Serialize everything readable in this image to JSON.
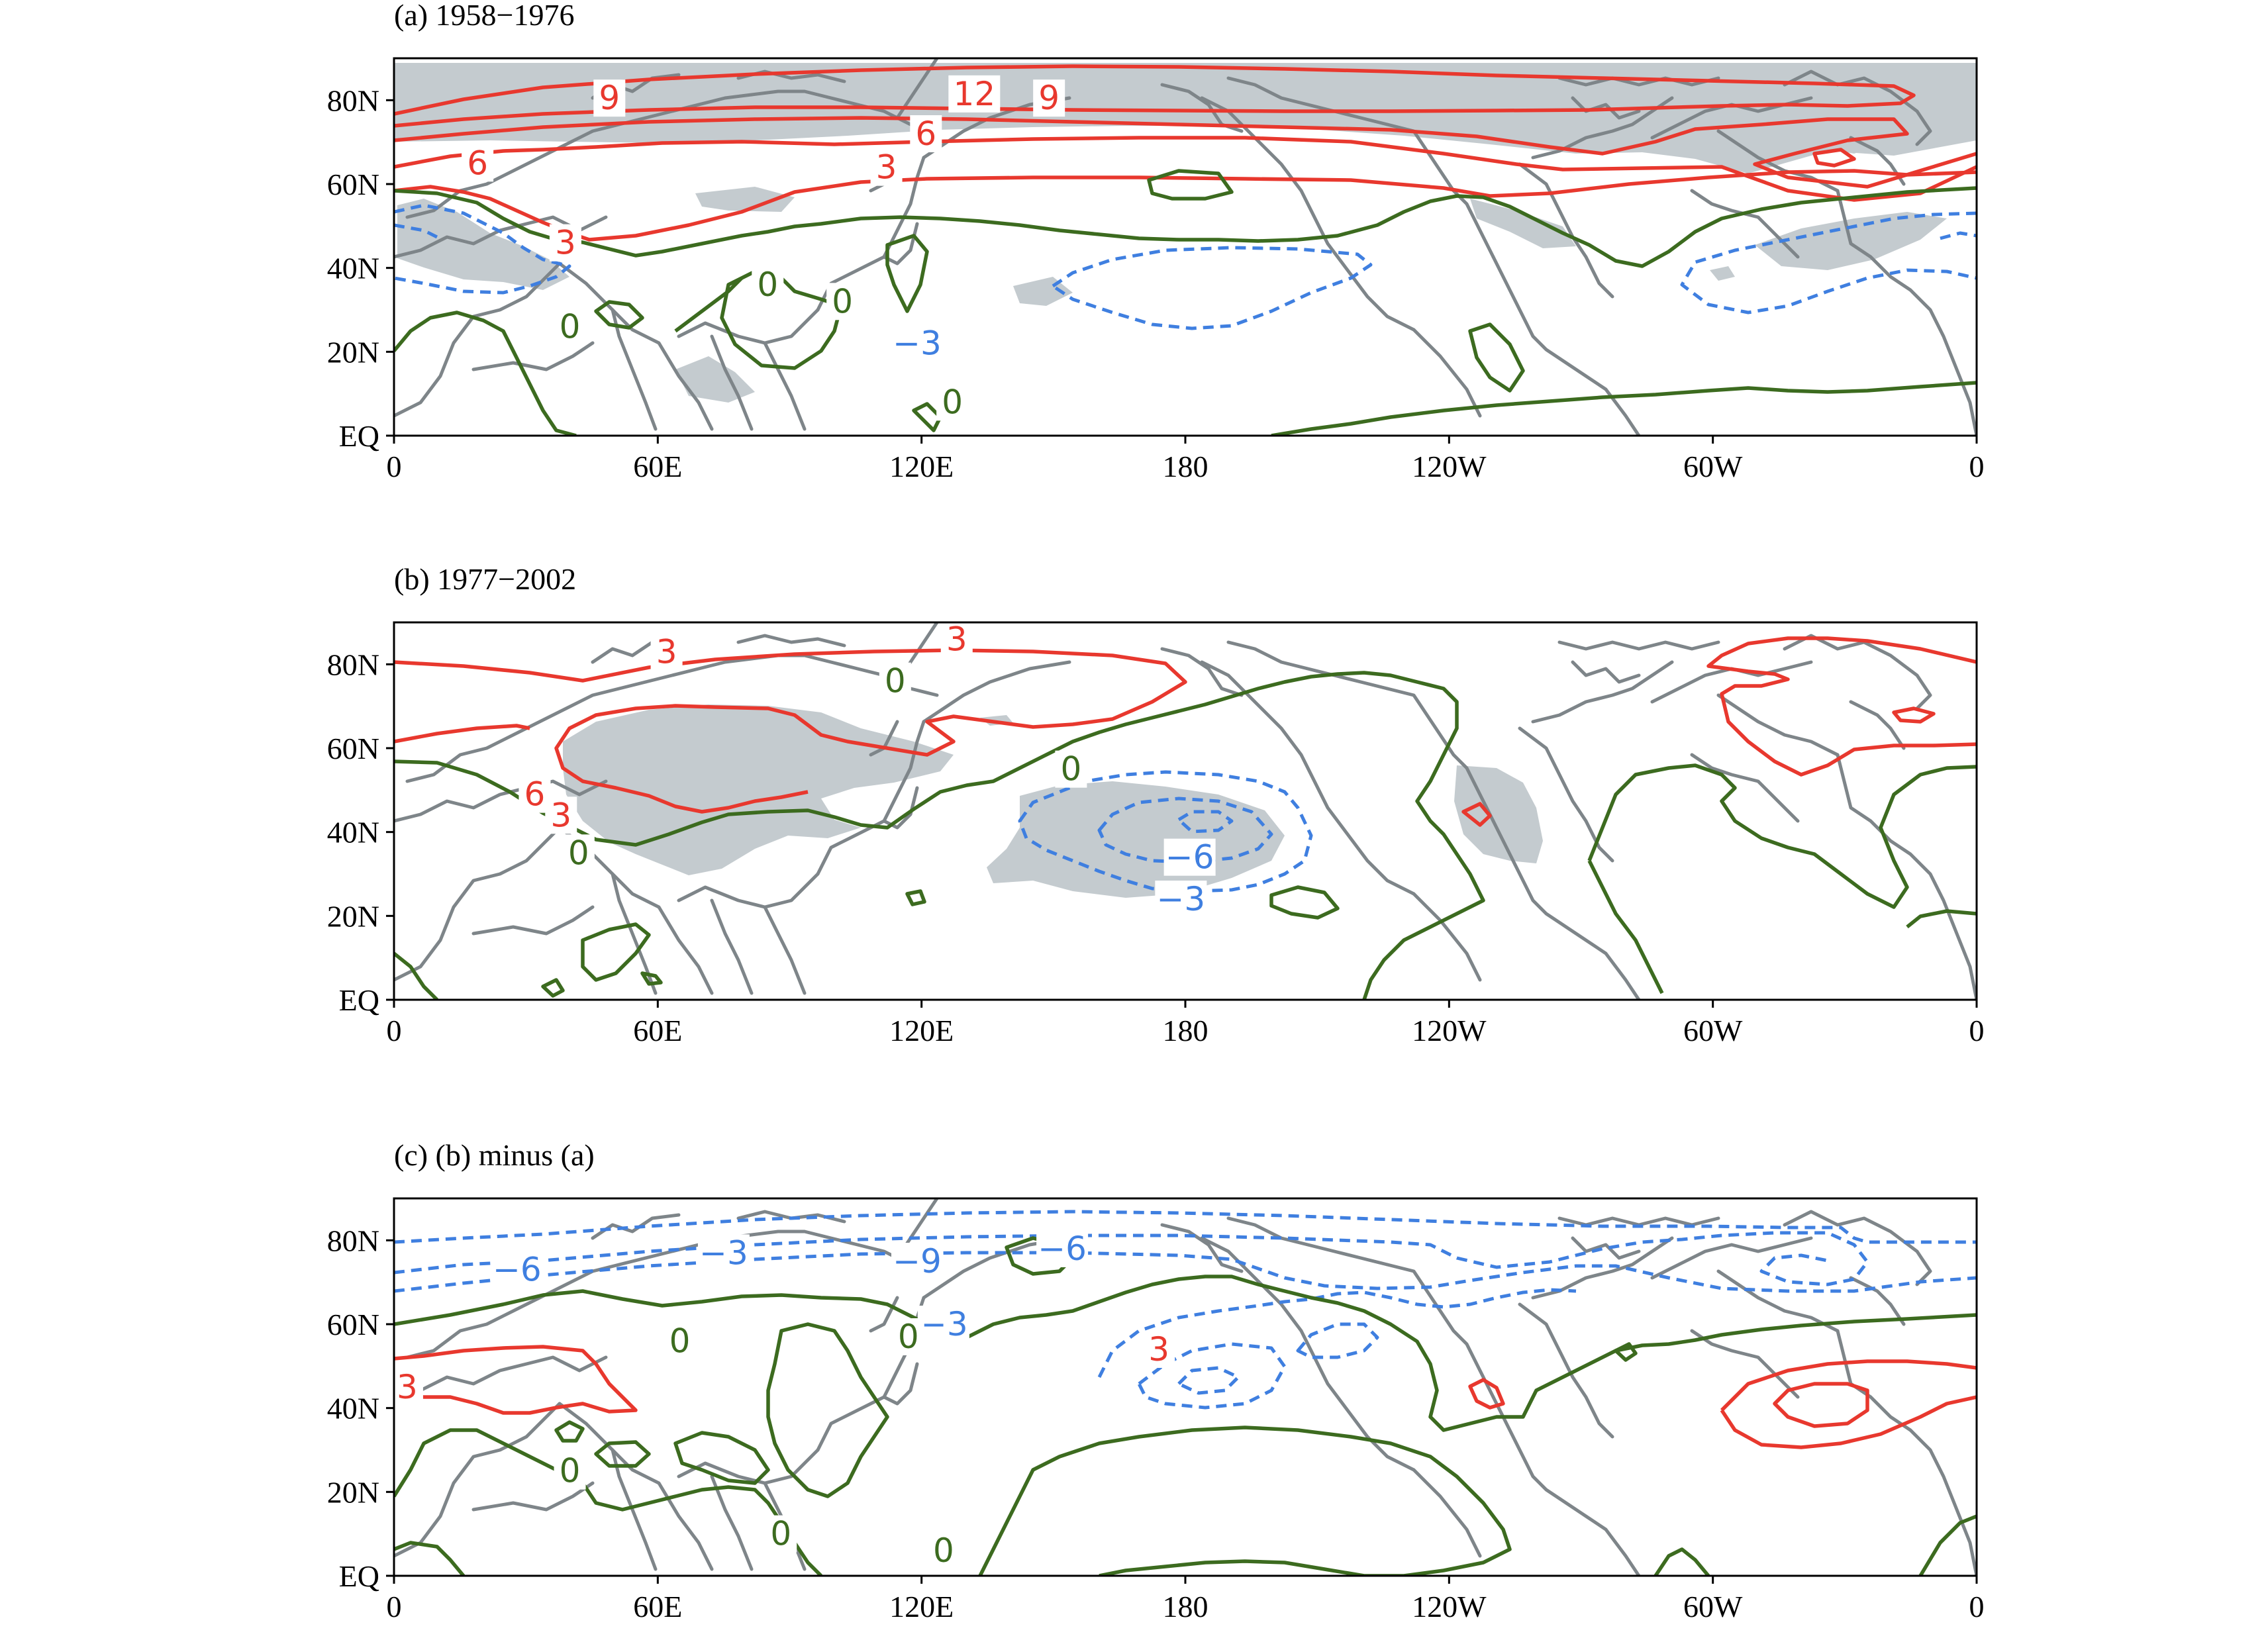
{
  "figure": {
    "panels": [
      {
        "id": "a",
        "title": "(a) 1958−1976",
        "labels": [
          {
            "text": "12",
            "lon": 132.0,
            "lat": 81.5,
            "sign": "pos"
          },
          {
            "text": "9",
            "lon": 149.0,
            "lat": 80.5,
            "sign": "pos"
          },
          {
            "text": "9",
            "lon": 49.0,
            "lat": 80.5,
            "sign": "pos"
          },
          {
            "text": "6",
            "lon": 121.0,
            "lat": 72.0,
            "sign": "pos"
          },
          {
            "text": "3",
            "lon": 112.0,
            "lat": 64.0,
            "sign": "pos"
          },
          {
            "text": "6",
            "lon": 19.0,
            "lat": 65.0,
            "sign": "pos"
          },
          {
            "text": "3",
            "lon": 39.0,
            "lat": 46.0,
            "sign": "pos"
          },
          {
            "text": "0",
            "lon": 85.0,
            "lat": 36.0,
            "sign": "zero"
          },
          {
            "text": "0",
            "lon": 40.0,
            "lat": 26.0,
            "sign": "zero"
          },
          {
            "text": "0",
            "lon": 102.0,
            "lat": 32.0,
            "sign": "zero"
          },
          {
            "text": "0",
            "lon": 127.0,
            "lat": 8.0,
            "sign": "zero"
          },
          {
            "text": "-3",
            "lon": 119.0,
            "lat": 22.0,
            "sign": "neg"
          }
        ]
      },
      {
        "id": "b",
        "title": "(b) 1977−2002",
        "labels": [
          {
            "text": "3",
            "lon": 62.0,
            "lat": 83.0,
            "sign": "pos"
          },
          {
            "text": "3",
            "lon": 128.0,
            "lat": 86.0,
            "sign": "pos"
          },
          {
            "text": "6",
            "lon": 32.0,
            "lat": 49.0,
            "sign": "pos"
          },
          {
            "text": "3",
            "lon": 38.0,
            "lat": 44.0,
            "sign": "pos"
          },
          {
            "text": "0",
            "lon": 114.0,
            "lat": 76.0,
            "sign": "zero"
          },
          {
            "text": "0",
            "lon": 154.0,
            "lat": 55.0,
            "sign": "zero"
          },
          {
            "text": "0",
            "lon": 42.0,
            "lat": 35.0,
            "sign": "zero"
          },
          {
            "text": "-6",
            "lon": 181.0,
            "lat": 34.0,
            "sign": "neg"
          },
          {
            "text": "-3",
            "lon": 179.0,
            "lat": 24.0,
            "sign": "neg"
          }
        ]
      },
      {
        "id": "c",
        "title": "(c) (b) minus (a)",
        "labels": [
          {
            "text": "-6",
            "lon": 28.0,
            "lat": 73.0,
            "sign": "neg"
          },
          {
            "text": "-3",
            "lon": 75.0,
            "lat": 77.0,
            "sign": "neg"
          },
          {
            "text": "-9",
            "lon": 119.0,
            "lat": 75.0,
            "sign": "neg"
          },
          {
            "text": "-6",
            "lon": 152.0,
            "lat": 78.0,
            "sign": "neg"
          },
          {
            "text": "-3",
            "lon": 125.0,
            "lat": 60.0,
            "sign": "neg"
          },
          {
            "text": "0",
            "lon": 65.0,
            "lat": 56.0,
            "sign": "zero"
          },
          {
            "text": "0",
            "lon": 117.0,
            "lat": 57.0,
            "sign": "zero"
          },
          {
            "text": "0",
            "lon": 40.0,
            "lat": 25.0,
            "sign": "zero"
          },
          {
            "text": "0",
            "lon": 88.0,
            "lat": 10.0,
            "sign": "zero"
          },
          {
            "text": "0",
            "lon": 125.0,
            "lat": 6.0,
            "sign": "zero"
          },
          {
            "text": "3",
            "lon": 3.0,
            "lat": 45.0,
            "sign": "pos"
          },
          {
            "text": "3",
            "lon": 174.0,
            "lat": 54.0,
            "sign": "pos"
          }
        ]
      }
    ],
    "x_ticks": [
      "0",
      "60E",
      "120E",
      "180",
      "120W",
      "60W",
      "0"
    ],
    "y_ticks": [
      "EQ",
      "20N",
      "40N",
      "60N",
      "80N"
    ]
  },
  "colors": {
    "positive": "#e8382e",
    "zero": "#3c6b1f",
    "negative": "#3f7fe0",
    "significance_shading": "#c4cbcf",
    "coastline": "#7e8589"
  }
}
